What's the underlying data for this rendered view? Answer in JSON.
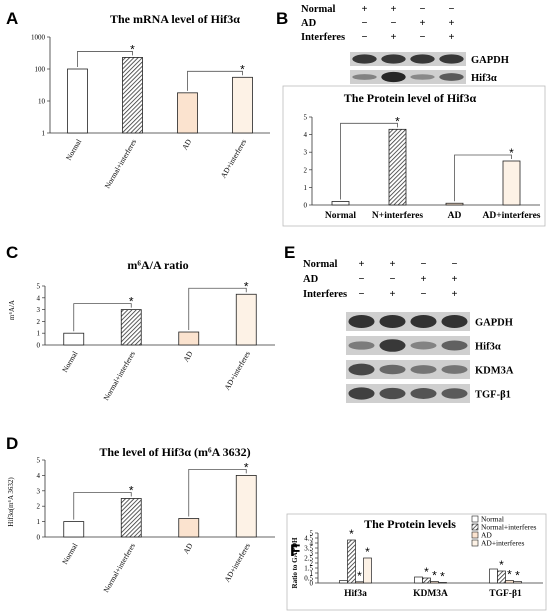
{
  "panel_letters": {
    "a": "A",
    "b": "B",
    "c": "C",
    "d": "D",
    "e": "E",
    "f": "F"
  },
  "colors": {
    "white": "#ffffff",
    "ad": "#fbe3cf",
    "ad_interferes": "#fdf2e6",
    "hatch": "#333333",
    "axis": "#333333",
    "bracket": "#555555",
    "band": "#1c1c1c",
    "blot_bg": "#cfcfcf"
  },
  "chart_data": [
    {
      "panel": "A",
      "type": "bar",
      "title": "The mRNA level of Hif3α",
      "categories": [
        "Normal",
        "Normal+interferes",
        "AD",
        "AD+interferes"
      ],
      "values": [
        100,
        230,
        18,
        55
      ],
      "scale": "log",
      "ylim": [
        1,
        1000
      ],
      "yticks": [
        "1",
        "10",
        "100",
        "1000"
      ],
      "significance": [
        "",
        "*",
        "",
        "*"
      ],
      "fills": [
        "white",
        "hatch",
        "ad",
        "ad_interferes"
      ]
    },
    {
      "panel": "B",
      "type": "bar",
      "title": "The Protein level of Hif3α",
      "categories": [
        "Normal",
        "N+interferes",
        "AD",
        "AD+interferes"
      ],
      "values": [
        0.2,
        4.3,
        0.1,
        2.5
      ],
      "ylim": [
        0,
        5
      ],
      "yticks": [
        "0",
        "1",
        "2",
        "3",
        "4",
        "5"
      ],
      "significance": [
        "",
        "*",
        "",
        "*"
      ],
      "fills": [
        "white",
        "hatch",
        "ad",
        "ad_interferes"
      ]
    },
    {
      "panel": "C",
      "type": "bar",
      "title": "m⁶A/A ratio",
      "ylabel": "m⁶A/A",
      "categories": [
        "Normal",
        "Normal+interferes",
        "AD",
        "AD+interferes"
      ],
      "values": [
        1.0,
        3.0,
        1.1,
        4.3
      ],
      "ylim": [
        0,
        5
      ],
      "yticks": [
        "0",
        "1",
        "2",
        "3",
        "4",
        "5"
      ],
      "significance": [
        "",
        "*",
        "",
        "*"
      ],
      "fills": [
        "white",
        "hatch",
        "ad",
        "ad_interferes"
      ]
    },
    {
      "panel": "D",
      "type": "bar",
      "title": "The level of Hif3α (m⁶A 3632)",
      "ylabel": "Hif3α(m⁶A 3632)",
      "categories": [
        "Normal",
        "Normal+interferes",
        "AD",
        "AD+interferes"
      ],
      "values": [
        1.0,
        2.5,
        1.2,
        4.0
      ],
      "ylim": [
        0,
        5
      ],
      "yticks": [
        "0",
        "1",
        "2",
        "3",
        "4",
        "5"
      ],
      "significance": [
        "",
        "*",
        "",
        "*"
      ],
      "fills": [
        "white",
        "hatch",
        "ad",
        "ad_interferes"
      ]
    },
    {
      "panel": "F",
      "type": "bar",
      "title": "The Protein levels",
      "ylabel": "Ratio to GAPDH",
      "categories": [
        "Hif3a",
        "KDM3A",
        "TGF-β1"
      ],
      "ylim": [
        0,
        5
      ],
      "yticks": [
        "0",
        "0.5",
        "1",
        "1.5",
        "2",
        "2.5",
        "3",
        "3.5",
        "4",
        "4.5",
        "5"
      ],
      "series": [
        {
          "name": "Normal",
          "values": [
            0.25,
            0.6,
            1.4
          ],
          "fill": "white",
          "significance": [
            "",
            "",
            ""
          ]
        },
        {
          "name": "Normal+interferes",
          "values": [
            4.3,
            0.5,
            1.2
          ],
          "fill": "hatch",
          "significance": [
            "*",
            "*",
            "*"
          ]
        },
        {
          "name": "AD",
          "values": [
            0.12,
            0.15,
            0.25
          ],
          "fill": "ad",
          "significance": [
            "*",
            "*",
            "*"
          ]
        },
        {
          "name": "AD+interferes",
          "values": [
            2.5,
            0.05,
            0.15
          ],
          "fill": "ad_interferes",
          "significance": [
            "*",
            "*",
            "*"
          ]
        }
      ],
      "legend": "top-right"
    }
  ],
  "blot_b": {
    "row_labels": [
      "Normal",
      "AD",
      "Interferes"
    ],
    "signs": [
      [
        "+",
        "+",
        "−",
        "−"
      ],
      [
        "−",
        "−",
        "+",
        "+"
      ],
      [
        "−",
        "+",
        "−",
        "+"
      ]
    ],
    "bands": [
      {
        "label": "GAPDH",
        "intensity": [
          0.85,
          0.85,
          0.85,
          0.85
        ]
      },
      {
        "label": "Hif3α",
        "intensity": [
          0.3,
          1.0,
          0.25,
          0.6
        ]
      }
    ]
  },
  "blot_e": {
    "row_labels": [
      "Normal",
      "AD",
      "Interferes"
    ],
    "signs": [
      [
        "+",
        "+",
        "−",
        "−"
      ],
      [
        "−",
        "−",
        "+",
        "+"
      ],
      [
        "−",
        "+",
        "−",
        "+"
      ]
    ],
    "bands": [
      {
        "label": "GAPDH",
        "intensity": [
          0.9,
          0.9,
          0.9,
          0.9
        ]
      },
      {
        "label": "Hif3α",
        "intensity": [
          0.35,
          0.85,
          0.3,
          0.55
        ]
      },
      {
        "label": "KDM3A",
        "intensity": [
          0.75,
          0.5,
          0.4,
          0.4
        ]
      },
      {
        "label": "TGF-β1",
        "intensity": [
          0.8,
          0.7,
          0.65,
          0.6
        ]
      }
    ]
  }
}
